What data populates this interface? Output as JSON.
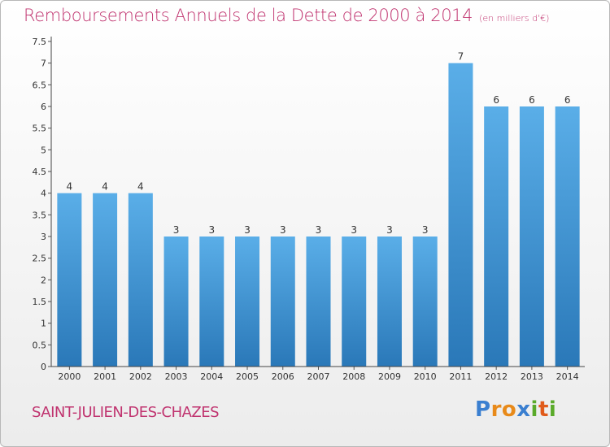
{
  "title": "Remboursements Annuels de la Dette de 2000 à 2014",
  "unit_note": "(en milliers d'€)",
  "commune": "SAINT-JULIEN-DES-CHAZES",
  "logo": {
    "letters": [
      "P",
      "r",
      "o",
      "x",
      "i",
      "t",
      "i"
    ],
    "colors": [
      "#3a7fd0",
      "#e88a1a",
      "#e88a1a",
      "#3a7fd0",
      "#5aaa2a",
      "#e05a1a",
      "#5aaa2a"
    ]
  },
  "colors": {
    "bar_top": "#5aaee8",
    "bar_bottom": "#2a78b8",
    "text": "#c0336f"
  },
  "chart_data": {
    "type": "bar",
    "title": "Remboursements Annuels de la Dette de 2000 à 2014",
    "xlabel": "",
    "ylabel": "",
    "categories": [
      "2000",
      "2001",
      "2002",
      "2003",
      "2004",
      "2005",
      "2006",
      "2007",
      "2008",
      "2009",
      "2010",
      "2011",
      "2012",
      "2013",
      "2014"
    ],
    "values": [
      4,
      4,
      4,
      3,
      3,
      3,
      3,
      3,
      3,
      3,
      3,
      7,
      6,
      6,
      6
    ],
    "data_labels": [
      "4",
      "4",
      "4",
      "3",
      "3",
      "3",
      "3",
      "3",
      "3",
      "3",
      "3",
      "7",
      "6",
      "6",
      "6"
    ],
    "ylim": [
      0,
      7.5
    ],
    "yticks": [
      "0",
      "0.5",
      "1",
      "1.5",
      "2",
      "2.5",
      "3",
      "3.5",
      "4",
      "4.5",
      "5",
      "5.5",
      "6",
      "6.5",
      "7",
      "7.5"
    ],
    "grid": false,
    "legend": "none"
  }
}
